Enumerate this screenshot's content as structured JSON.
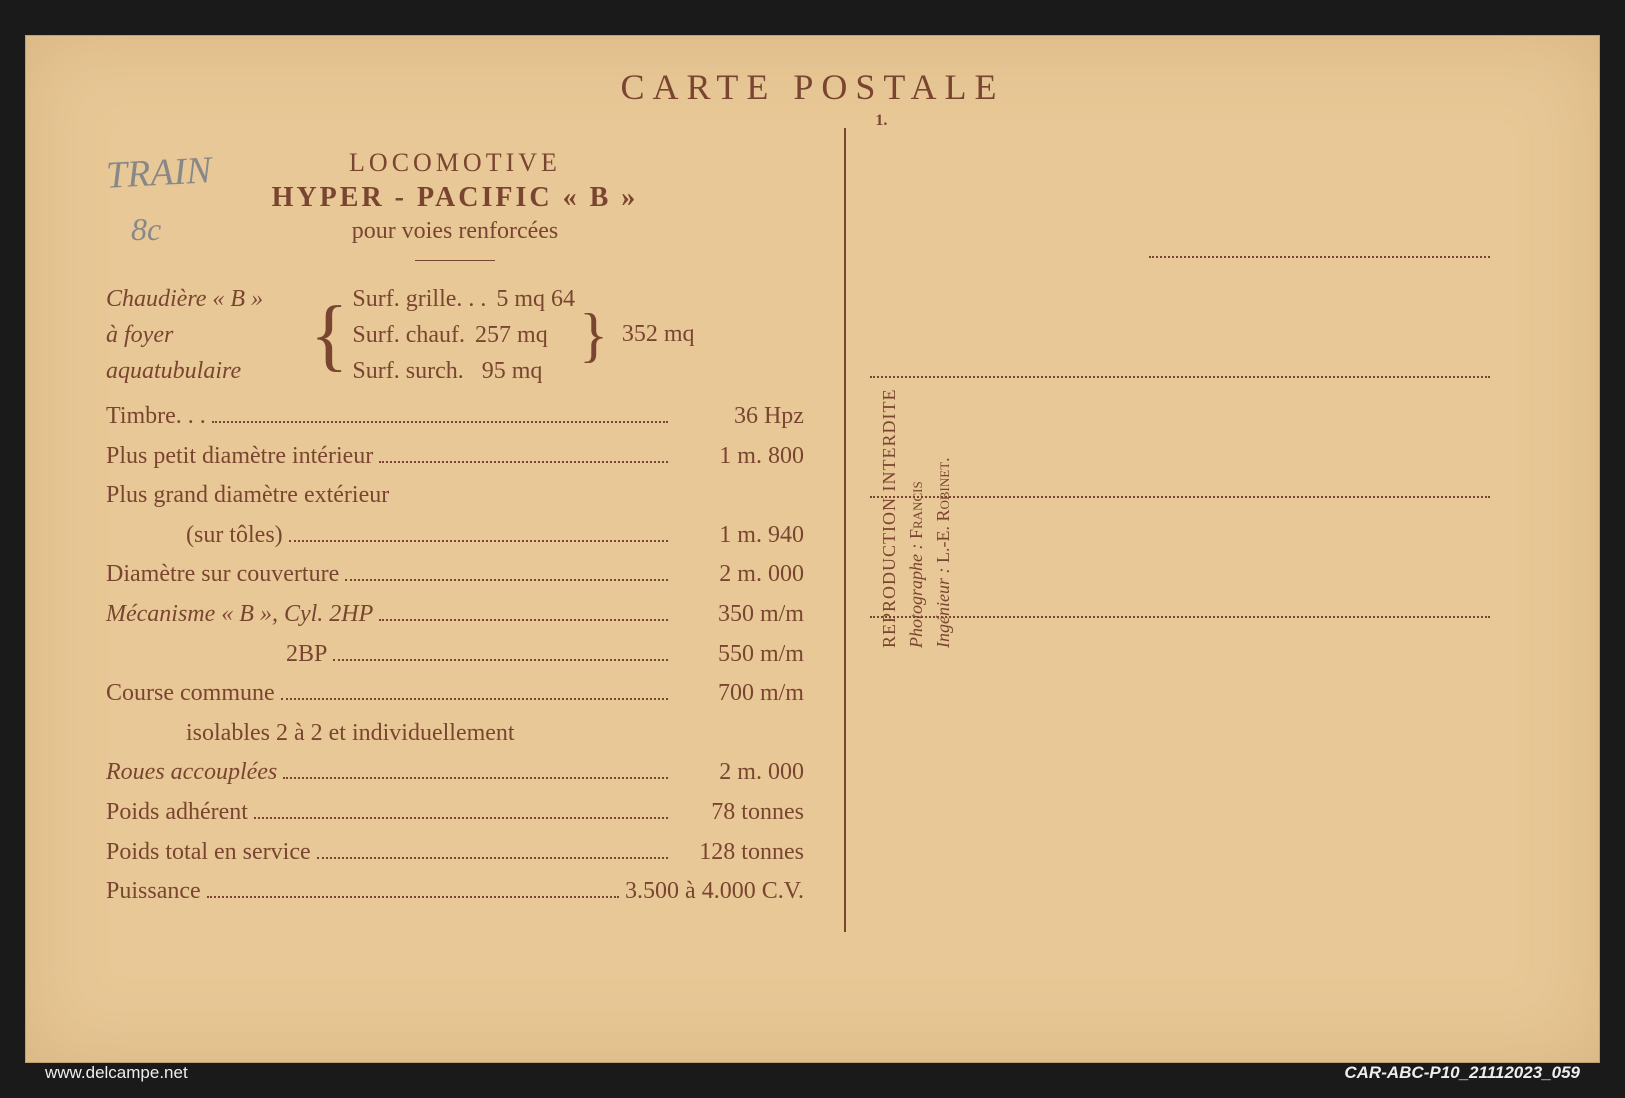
{
  "header": "CARTE POSTALE",
  "page_num": "1.",
  "handwriting": {
    "train": "TRAIN",
    "eight": "8c"
  },
  "title": {
    "line1": "LOCOMOTIVE",
    "line2": "HYPER - PACIFIC « B »",
    "line3": "pour voies renforcées"
  },
  "boiler": {
    "label1": "Chaudière « B »",
    "label2": "à foyer",
    "label3": "aquatubulaire",
    "surf_grille_label": "Surf. grille. . .",
    "surf_grille_value": "5 mq 64",
    "surf_chauf_label": "Surf. chauf.",
    "surf_chauf_value": "257 mq",
    "surf_surch_label": "Surf. surch.",
    "surf_surch_value": "95 mq",
    "total": "352 mq"
  },
  "specs": [
    {
      "label": "Timbre. . .",
      "value": "36 Hpz",
      "italic": false
    },
    {
      "label": "Plus petit diamètre intérieur",
      "value": "1 m. 800",
      "italic": false
    },
    {
      "label": "Plus grand diamètre extérieur",
      "value": "",
      "italic": false,
      "nodots": true
    },
    {
      "label": "(sur tôles)",
      "value": "1 m. 940",
      "italic": false,
      "indent": true
    },
    {
      "label": "Diamètre sur couverture",
      "value": "2 m. 000",
      "italic": false
    },
    {
      "label": "Mécanisme « B », Cyl. 2HP",
      "value": "350 m/m",
      "italic": true
    },
    {
      "label": "2BP",
      "value": "550 m/m",
      "italic": false,
      "indent2": true
    },
    {
      "label": "Course commune",
      "value": "700 m/m",
      "italic": false
    },
    {
      "label": "isolables 2 à 2 et individuellement",
      "value": "",
      "italic": false,
      "indent": true,
      "nodots": true
    },
    {
      "label": "Roues accouplées",
      "value": "2 m. 000",
      "italic": true
    },
    {
      "label": "Poids adhérent",
      "value": "78 tonnes",
      "italic": false
    },
    {
      "label": "Poids total en service",
      "value": "128 tonnes",
      "italic": false
    },
    {
      "label": "Puissance",
      "value": "3.500 à 4.000 C.V.",
      "italic": false
    }
  ],
  "credits": {
    "line1": "REPRODUCTION INTERDITE",
    "photo_label": "Photographe :",
    "photo_name": "Francis",
    "eng_label": "Ingénieur :",
    "eng_name": "L.-E. Robinet."
  },
  "footer": {
    "left": "www.delcampe.net",
    "right": "CAR-ABC-P10_21112023_059"
  },
  "colors": {
    "card_bg": "#e8c896",
    "text": "#7a4530",
    "page_bg": "#1a1a1a"
  }
}
